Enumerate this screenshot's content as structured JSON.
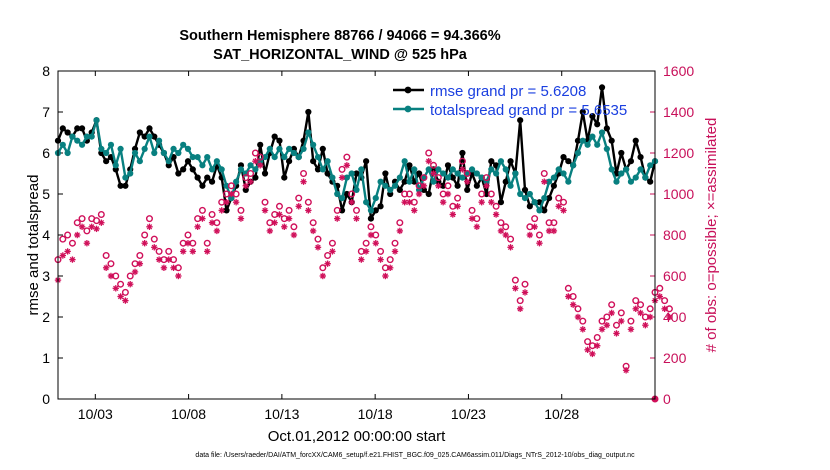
{
  "chart_data": {
    "type": "line",
    "title": "Southern Hemisphere 88766 / 94066 = 94.366%",
    "subtitle": "SAT_HORIZONTAL_WIND @ 525 hPa",
    "xlabel": "Oct.01,2012 00:00:00 start",
    "ylabel_left": "rmse and totalspread",
    "ylabel_right": "# of obs: o=possible; ×=assimilated",
    "footer": "data file: /Users/raeder/DAI/ATM_forcXX/CAM6_setup/f.e21.FHIST_BGC.f09_025.CAM6assim.011/Diags_NTrS_2012-10/obs_diag_output.nc",
    "x_range_days": [
      1,
      33
    ],
    "x_ticks": [
      {
        "day": 3,
        "label": "10/03"
      },
      {
        "day": 8,
        "label": "10/08"
      },
      {
        "day": 13,
        "label": "10/13"
      },
      {
        "day": 18,
        "label": "10/18"
      },
      {
        "day": 23,
        "label": "10/23"
      },
      {
        "day": 28,
        "label": "10/28"
      }
    ],
    "ylim_left": [
      0,
      8
    ],
    "y_ticks_left": [
      0,
      1,
      2,
      3,
      4,
      5,
      6,
      7,
      8
    ],
    "ylim_right": [
      0,
      1600
    ],
    "y_ticks_right": [
      0,
      200,
      400,
      600,
      800,
      1000,
      1200,
      1400,
      1600
    ],
    "legend": [
      "rmse grand pr = 5.6208",
      "totalspread grand pr = 5.6535"
    ],
    "legend_position": "top-right",
    "series": [
      {
        "name": "rmse",
        "color": "#000000",
        "marker": "dot",
        "axis": "left",
        "values": [
          6.3,
          6.6,
          6.5,
          6.4,
          6.6,
          6.6,
          6.3,
          6.5,
          6.8,
          6.0,
          5.8,
          5.9,
          5.6,
          5.2,
          5.2,
          5.6,
          6.1,
          6.5,
          6.4,
          6.6,
          6.4,
          6.2,
          6.0,
          5.7,
          5.9,
          5.5,
          5.6,
          5.8,
          5.6,
          5.4,
          5.2,
          5.4,
          5.3,
          5.7,
          5.4,
          4.6,
          4.9,
          5.2,
          5.7,
          5.1,
          5.3,
          5.4,
          6.2,
          5.5,
          6.0,
          6.4,
          6.3,
          5.4,
          5.8,
          6.1,
          5.9,
          6.3,
          7.0,
          5.8,
          5.6,
          6.1,
          5.5,
          5.3,
          5.2,
          4.6,
          5.0,
          4.8,
          5.5,
          5.4,
          5.8,
          4.4,
          4.6,
          4.7,
          5.5,
          5.0,
          5.3,
          5.1,
          5.3,
          5.7,
          5.3,
          5.5,
          5.1,
          5.0,
          5.6,
          5.3,
          5.2,
          5.7,
          5.4,
          5.2,
          6.0,
          5.1,
          5.5,
          5.2,
          5.4,
          5.0,
          5.8,
          5.7,
          4.8,
          5.3,
          5.8,
          5.5,
          6.8,
          5.1,
          4.7,
          4.8,
          4.8,
          4.6,
          4.9,
          5.2,
          5.5,
          5.9,
          5.8,
          5.7,
          6.3,
          7.0,
          6.3,
          6.9,
          6.7,
          7.6,
          6.6,
          6.3,
          5.5,
          6.0,
          5.6,
          5.8,
          6.3,
          5.9,
          5.4,
          5.3,
          5.8
        ]
      },
      {
        "name": "totalspread",
        "color": "#088080",
        "marker": "dot",
        "axis": "left",
        "values": [
          6.0,
          6.2,
          6.0,
          6.4,
          6.3,
          6.2,
          6.4,
          6.4,
          6.8,
          6.1,
          6.0,
          6.2,
          5.7,
          6.1,
          5.4,
          5.5,
          6.0,
          5.8,
          6.1,
          6.4,
          6.0,
          6.3,
          6.0,
          5.8,
          6.1,
          6.0,
          6.2,
          6.1,
          5.9,
          5.9,
          5.7,
          5.9,
          5.6,
          5.8,
          5.6,
          5.2,
          4.9,
          5.3,
          5.6,
          5.5,
          5.7,
          5.6,
          5.8,
          5.9,
          6.1,
          5.9,
          6.1,
          5.9,
          6.1,
          6.0,
          5.9,
          6.1,
          6.5,
          6.2,
          5.9,
          5.6,
          5.8,
          5.4,
          5.0,
          4.9,
          5.4,
          5.5,
          5.1,
          5.6,
          4.8,
          4.6,
          4.9,
          5.3,
          5.2,
          5.1,
          5.2,
          5.4,
          5.8,
          5.3,
          5.6,
          5.1,
          5.4,
          5.6,
          5.3,
          5.6,
          5.5,
          5.4,
          5.6,
          5.5,
          5.4,
          5.5,
          5.6,
          5.5,
          5.4,
          5.3,
          5.6,
          5.5,
          5.8,
          5.6,
          5.2,
          5.5,
          5.0,
          4.9,
          5.0,
          4.8,
          4.6,
          4.9,
          5.3,
          5.4,
          5.6,
          5.5,
          5.3,
          5.7,
          6.0,
          6.3,
          6.2,
          6.4,
          6.2,
          6.5,
          6.1,
          5.6,
          5.3,
          5.5,
          5.6,
          5.3,
          5.4,
          5.6,
          5.4,
          5.7,
          5.8
        ]
      },
      {
        "name": "possible",
        "color": "#d0105a",
        "marker": "circle",
        "axis": "right",
        "values": [
          680,
          780,
          800,
          760,
          860,
          880,
          820,
          880,
          870,
          900,
          700,
          660,
          600,
          560,
          520,
          600,
          660,
          700,
          800,
          880,
          780,
          720,
          680,
          720,
          680,
          640,
          760,
          800,
          760,
          880,
          920,
          760,
          900,
          860,
          960,
          1000,
          1040,
          1000,
          920,
          1080,
          1100,
          1200,
          1180,
          960,
          860,
          900,
          940,
          880,
          920,
          840,
          980,
          1100,
          960,
          860,
          780,
          640,
          700,
          760,
          920,
          1120,
          1180,
          1000,
          920,
          720,
          760,
          840,
          800,
          720,
          640,
          680,
          760,
          860,
          1000,
          1000,
          960,
          1040,
          1080,
          1200,
          1140,
          1080,
          1000,
          1040,
          940,
          980,
          1160,
          1100,
          920,
          880,
          1000,
          1080,
          1000,
          940,
          860,
          840,
          780,
          580,
          480,
          560,
          840,
          880,
          800,
          1100,
          860,
          860,
          980,
          960,
          540,
          500,
          440,
          380,
          280,
          260,
          300,
          380,
          400,
          460,
          360,
          420,
          160,
          380,
          480,
          460,
          400,
          440,
          520,
          540,
          480,
          440
        ]
      },
      {
        "name": "assimilated",
        "color": "#d0105a",
        "marker": "x",
        "axis": "right",
        "values": [
          580,
          700,
          720,
          680,
          800,
          840,
          760,
          840,
          830,
          860,
          640,
          600,
          540,
          500,
          480,
          560,
          620,
          660,
          760,
          840,
          740,
          680,
          640,
          680,
          640,
          600,
          720,
          760,
          720,
          840,
          880,
          720,
          860,
          820,
          920,
          960,
          1000,
          960,
          880,
          1040,
          1060,
          1160,
          1140,
          920,
          820,
          860,
          900,
          840,
          880,
          800,
          940,
          1060,
          920,
          820,
          740,
          600,
          660,
          720,
          880,
          1080,
          1140,
          960,
          880,
          680,
          720,
          800,
          760,
          680,
          600,
          640,
          720,
          820,
          960,
          960,
          920,
          1000,
          1040,
          1160,
          1100,
          1040,
          960,
          1000,
          900,
          940,
          1120,
          1060,
          880,
          840,
          960,
          1040,
          960,
          900,
          820,
          800,
          740,
          540,
          440,
          520,
          800,
          840,
          760,
          1060,
          820,
          820,
          940,
          920,
          500,
          460,
          400,
          340,
          240,
          220,
          260,
          340,
          360,
          420,
          320,
          380,
          140,
          340,
          440,
          420,
          360,
          400,
          480,
          500,
          440,
          400
        ]
      }
    ]
  }
}
